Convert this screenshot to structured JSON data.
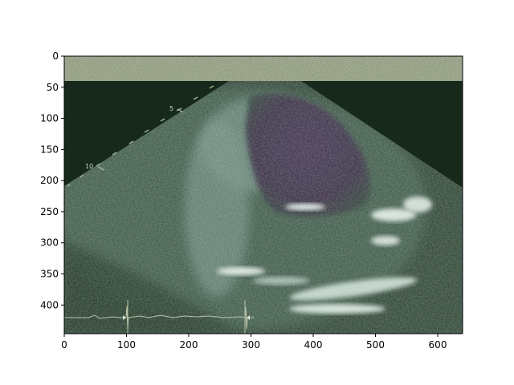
{
  "image": {
    "subject": "ultrasound echocardiogram",
    "x_ticks": [
      "0",
      "100",
      "200",
      "300",
      "400",
      "500",
      "600"
    ],
    "y_ticks": [
      "0",
      "50",
      "100",
      "150",
      "200",
      "250",
      "300",
      "350",
      "400"
    ],
    "depth_markers": [
      "5",
      "10"
    ],
    "colors": {
      "background": "#ffffff",
      "tissue_dark": "#17291b",
      "tissue_mid": "#3f5a47",
      "tissue_bright": "#c6d8cf",
      "chamber": "#3b2a4a",
      "noise_band": "#8e9a7a",
      "ecg_trace": "#b8c4a8"
    }
  }
}
